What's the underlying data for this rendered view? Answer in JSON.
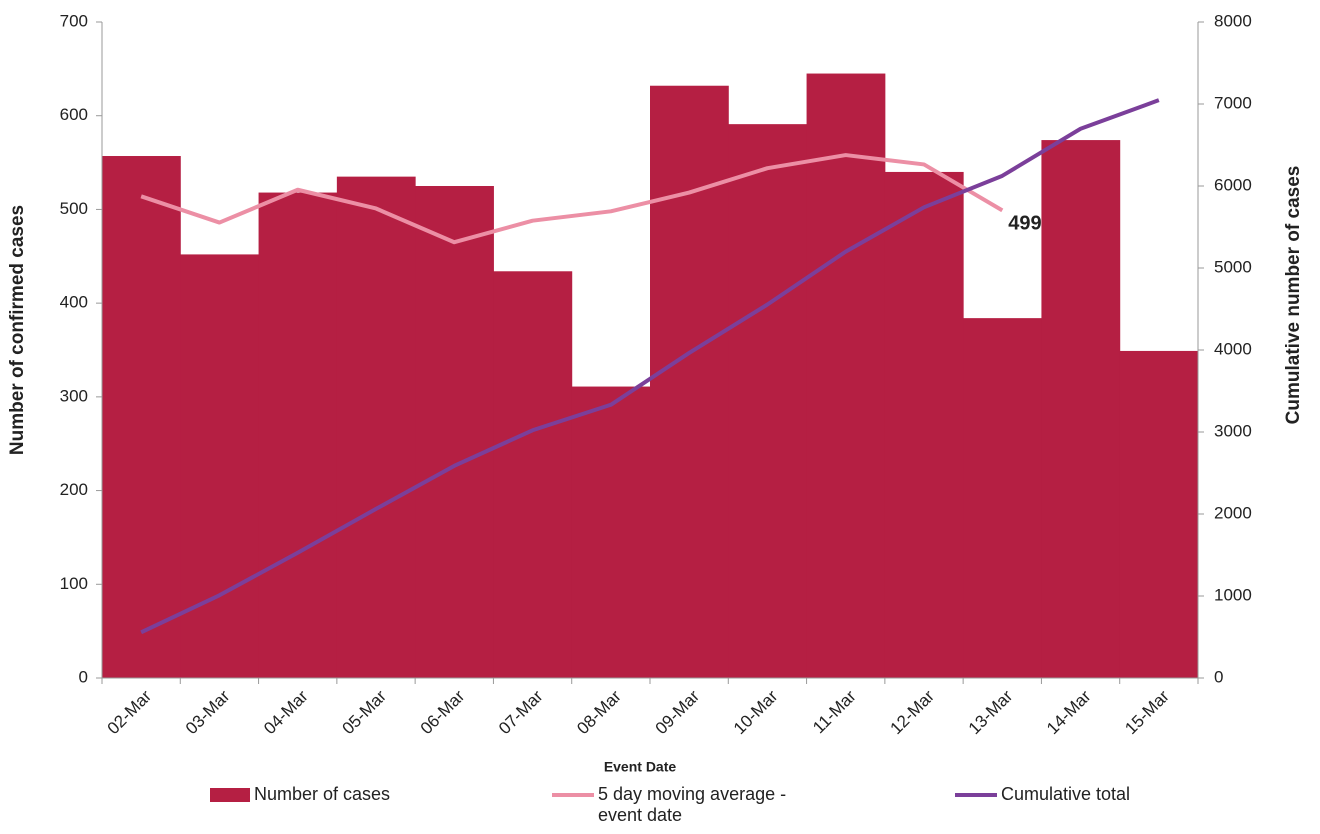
{
  "chart_data": {
    "type": "combo",
    "x_label": "Event Date",
    "y_label": "Number of confirmed cases",
    "y2_label": "Cumulative number of cases",
    "categories": [
      "02-Mar",
      "03-Mar",
      "04-Mar",
      "05-Mar",
      "06-Mar",
      "07-Mar",
      "08-Mar",
      "09-Mar",
      "10-Mar",
      "11-Mar",
      "12-Mar",
      "13-Mar",
      "14-Mar",
      "15-Mar"
    ],
    "series": [
      {
        "name": "Number of cases",
        "type": "bar",
        "color": "#b51f43",
        "values": [
          557,
          452,
          518,
          535,
          525,
          434,
          311,
          632,
          591,
          645,
          540,
          384,
          574,
          349
        ]
      },
      {
        "name": "5 day moving average - event date",
        "type": "line",
        "color": "#ec8fa5",
        "values": [
          514,
          486,
          521,
          501,
          465,
          488,
          498,
          518,
          544,
          558,
          548,
          499,
          null,
          null
        ]
      },
      {
        "name": "Cumulative total",
        "type": "line",
        "color": "#7b3f9a",
        "axis": "y2",
        "values": [
          557,
          1009,
          1527,
          2062,
          2587,
          3021,
          3332,
          3964,
          4555,
          5200,
          5740,
          6124,
          6698,
          7047
        ]
      }
    ],
    "ylim": [
      0,
      700
    ],
    "yticks": [
      0,
      100,
      200,
      300,
      400,
      500,
      600,
      700
    ],
    "y2lim": [
      0,
      8000
    ],
    "y2ticks": [
      0,
      1000,
      2000,
      3000,
      4000,
      5000,
      6000,
      7000,
      8000
    ],
    "legend": "bottom"
  }
}
